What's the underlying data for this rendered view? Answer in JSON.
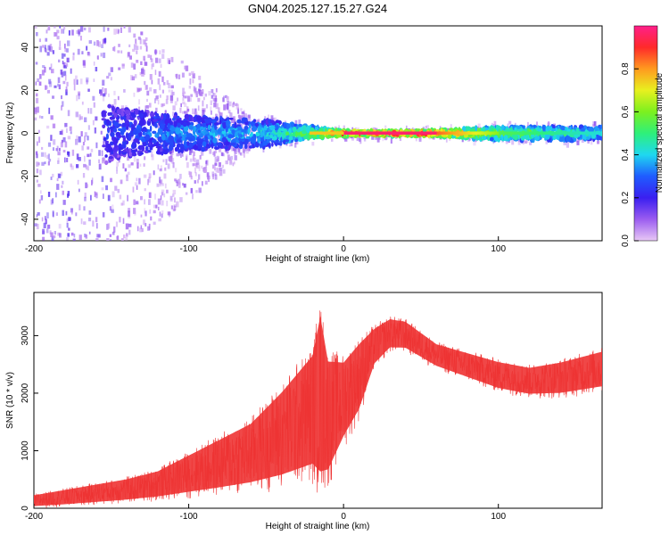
{
  "figure": {
    "title": "GN04.2025.127.15.27.G24"
  },
  "chart_data": [
    {
      "type": "heatmap",
      "xlabel": "Height of straight line (km)",
      "ylabel": "Frequency (Hz)",
      "xlim": [
        -200,
        167
      ],
      "ylim": [
        -50,
        50
      ],
      "xticks": [
        -200,
        -100,
        0,
        100
      ],
      "yticks": [
        -40,
        -20,
        0,
        20,
        40
      ],
      "colorbar": {
        "label": "Normalized spectral amplitude",
        "range": [
          0,
          1
        ],
        "ticks": [
          "0.0",
          "0.2",
          "0.4",
          "0.6",
          "0.8"
        ],
        "colors": [
          "#e8c8f5",
          "#9b5cf0",
          "#3a1ff0",
          "#1f5cff",
          "#1fd8f0",
          "#2ef07a",
          "#7cf01f",
          "#e8f01f",
          "#ff9a1f",
          "#ff2a2a",
          "#ff1f8a"
        ]
      },
      "description_points": [
        {
          "x": -200,
          "band_low": -50,
          "band_high": 50,
          "amplitude": 0.1
        },
        {
          "x": -150,
          "band_low": -12,
          "band_high": 12,
          "amplitude": 0.25
        },
        {
          "x": -100,
          "band_low": -8,
          "band_high": 8,
          "amplitude": 0.35
        },
        {
          "x": -50,
          "band_low": -6,
          "band_high": 6,
          "amplitude": 0.4
        },
        {
          "x": -20,
          "band_low": -2,
          "band_high": 3,
          "amplitude": 0.6
        },
        {
          "x": 0,
          "band_low": -1,
          "band_high": 1,
          "amplitude": 0.9
        },
        {
          "x": 50,
          "band_low": -1,
          "band_high": 1,
          "amplitude": 0.95
        },
        {
          "x": 100,
          "band_low": -3,
          "band_high": 3,
          "amplitude": 0.6
        },
        {
          "x": 167,
          "band_low": -3,
          "band_high": 3,
          "amplitude": 0.45
        }
      ]
    },
    {
      "type": "line",
      "xlabel": "Height of straight line (km)",
      "ylabel": "SNR (10 * v/v)",
      "xlim": [
        -200,
        167
      ],
      "ylim": [
        0,
        3750
      ],
      "xticks": [
        -200,
        -100,
        0,
        100
      ],
      "yticks": [
        0,
        1000,
        2000,
        3000
      ],
      "color": "#ee3333",
      "envelope": {
        "x": [
          -200,
          -180,
          -160,
          -140,
          -120,
          -100,
          -80,
          -60,
          -40,
          -20,
          -15,
          -10,
          0,
          10,
          20,
          30,
          40,
          60,
          80,
          100,
          120,
          140,
          167
        ],
        "low": [
          0,
          20,
          50,
          80,
          120,
          160,
          200,
          250,
          300,
          400,
          100,
          300,
          1000,
          1500,
          2400,
          2700,
          2700,
          2400,
          2200,
          2000,
          1900,
          1900,
          2000
        ],
        "high": [
          250,
          350,
          450,
          550,
          700,
          1000,
          1300,
          1600,
          2200,
          2900,
          3700,
          2800,
          2700,
          3000,
          3200,
          3350,
          3300,
          2900,
          2750,
          2600,
          2500,
          2600,
          2800
        ]
      }
    }
  ]
}
